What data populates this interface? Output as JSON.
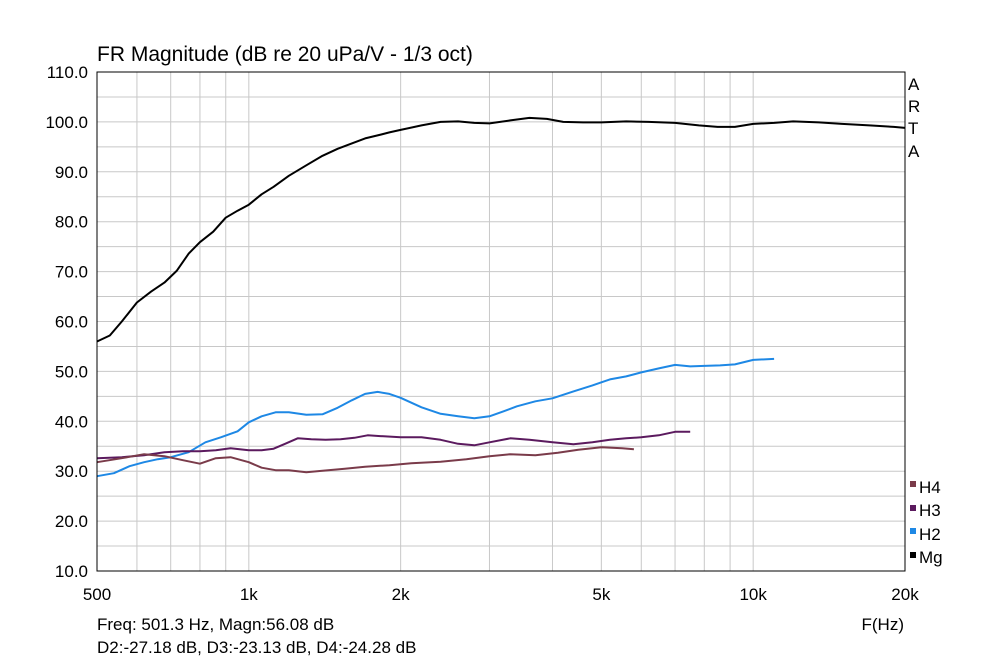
{
  "chart_data": {
    "type": "line",
    "title": "FR Magnitude (dB re 20 uPa/V - 1/3 oct)",
    "xlabel": "F(Hz)",
    "ylabel": "",
    "x_scale": "log",
    "xlim": [
      500,
      20000
    ],
    "ylim": [
      10,
      110
    ],
    "grid": true,
    "y_ticks": [
      "10.0",
      "20.0",
      "30.0",
      "40.0",
      "50.0",
      "60.0",
      "70.0",
      "80.0",
      "90.0",
      "100.0",
      "110.0"
    ],
    "y_tick_values": [
      10,
      20,
      30,
      40,
      50,
      60,
      70,
      80,
      90,
      100,
      110
    ],
    "x_ticks": [
      "500",
      "1k",
      "2k",
      "5k",
      "10k",
      "20k"
    ],
    "x_tick_values": [
      500,
      1000,
      2000,
      5000,
      10000,
      20000
    ],
    "brand": [
      "A",
      "R",
      "T",
      "A"
    ],
    "legend_position": "bottom-right",
    "series": [
      {
        "name": "Mg",
        "color": "#000000",
        "points": [
          [
            500,
            56.0
          ],
          [
            530,
            57.2
          ],
          [
            560,
            60.0
          ],
          [
            600,
            63.8
          ],
          [
            640,
            66.0
          ],
          [
            680,
            67.8
          ],
          [
            720,
            70.2
          ],
          [
            760,
            73.6
          ],
          [
            800,
            75.9
          ],
          [
            850,
            78.0
          ],
          [
            900,
            80.8
          ],
          [
            950,
            82.2
          ],
          [
            1000,
            83.4
          ],
          [
            1060,
            85.5
          ],
          [
            1120,
            87.0
          ],
          [
            1200,
            89.2
          ],
          [
            1300,
            91.3
          ],
          [
            1400,
            93.2
          ],
          [
            1500,
            94.6
          ],
          [
            1600,
            95.7
          ],
          [
            1700,
            96.7
          ],
          [
            1800,
            97.3
          ],
          [
            1900,
            97.9
          ],
          [
            2000,
            98.4
          ],
          [
            2200,
            99.3
          ],
          [
            2400,
            100.0
          ],
          [
            2600,
            100.1
          ],
          [
            2800,
            99.8
          ],
          [
            3000,
            99.7
          ],
          [
            3300,
            100.3
          ],
          [
            3600,
            100.8
          ],
          [
            3900,
            100.6
          ],
          [
            4200,
            100.0
          ],
          [
            4600,
            99.9
          ],
          [
            5000,
            99.9
          ],
          [
            5600,
            100.1
          ],
          [
            6200,
            100.0
          ],
          [
            7000,
            99.8
          ],
          [
            7800,
            99.3
          ],
          [
            8500,
            99.0
          ],
          [
            9200,
            99.0
          ],
          [
            10000,
            99.6
          ],
          [
            11000,
            99.8
          ],
          [
            12000,
            100.1
          ],
          [
            13500,
            99.9
          ],
          [
            15000,
            99.6
          ],
          [
            17000,
            99.3
          ],
          [
            19000,
            99.0
          ],
          [
            20000,
            98.8
          ]
        ]
      },
      {
        "name": "H2",
        "color": "#1e88e5",
        "points": [
          [
            500,
            29.0
          ],
          [
            540,
            29.6
          ],
          [
            580,
            31.0
          ],
          [
            620,
            31.8
          ],
          [
            660,
            32.4
          ],
          [
            700,
            32.8
          ],
          [
            760,
            33.8
          ],
          [
            820,
            35.8
          ],
          [
            880,
            36.8
          ],
          [
            950,
            38.0
          ],
          [
            1000,
            39.8
          ],
          [
            1060,
            41.0
          ],
          [
            1130,
            41.8
          ],
          [
            1200,
            41.8
          ],
          [
            1300,
            41.3
          ],
          [
            1400,
            41.4
          ],
          [
            1500,
            42.7
          ],
          [
            1600,
            44.2
          ],
          [
            1700,
            45.5
          ],
          [
            1800,
            45.9
          ],
          [
            1900,
            45.5
          ],
          [
            2000,
            44.7
          ],
          [
            2200,
            42.8
          ],
          [
            2400,
            41.5
          ],
          [
            2600,
            41.0
          ],
          [
            2800,
            40.6
          ],
          [
            3000,
            41.0
          ],
          [
            3200,
            42.0
          ],
          [
            3400,
            43.0
          ],
          [
            3700,
            44.0
          ],
          [
            4000,
            44.6
          ],
          [
            4400,
            46.0
          ],
          [
            4800,
            47.2
          ],
          [
            5200,
            48.4
          ],
          [
            5600,
            49.0
          ],
          [
            6000,
            49.8
          ],
          [
            6500,
            50.6
          ],
          [
            7000,
            51.3
          ],
          [
            7500,
            51.0
          ],
          [
            8000,
            51.1
          ],
          [
            8600,
            51.2
          ],
          [
            9200,
            51.4
          ],
          [
            10000,
            52.3
          ],
          [
            11000,
            52.5
          ]
        ]
      },
      {
        "name": "H3",
        "color": "#5b1a5e",
        "points": [
          [
            500,
            32.6
          ],
          [
            560,
            32.8
          ],
          [
            620,
            33.2
          ],
          [
            680,
            33.8
          ],
          [
            740,
            34.0
          ],
          [
            800,
            34.0
          ],
          [
            860,
            34.2
          ],
          [
            920,
            34.6
          ],
          [
            1000,
            34.2
          ],
          [
            1060,
            34.2
          ],
          [
            1120,
            34.5
          ],
          [
            1180,
            35.5
          ],
          [
            1250,
            36.6
          ],
          [
            1330,
            36.4
          ],
          [
            1420,
            36.3
          ],
          [
            1520,
            36.4
          ],
          [
            1620,
            36.7
          ],
          [
            1720,
            37.2
          ],
          [
            1850,
            37.0
          ],
          [
            2000,
            36.8
          ],
          [
            2200,
            36.8
          ],
          [
            2400,
            36.3
          ],
          [
            2600,
            35.5
          ],
          [
            2800,
            35.2
          ],
          [
            3000,
            35.8
          ],
          [
            3300,
            36.6
          ],
          [
            3600,
            36.3
          ],
          [
            4000,
            35.8
          ],
          [
            4400,
            35.4
          ],
          [
            4800,
            35.8
          ],
          [
            5200,
            36.3
          ],
          [
            5600,
            36.6
          ],
          [
            6000,
            36.8
          ],
          [
            6500,
            37.2
          ],
          [
            7000,
            37.9
          ],
          [
            7500,
            37.9
          ]
        ]
      },
      {
        "name": "H4",
        "color": "#7a3b4a",
        "points": [
          [
            500,
            31.8
          ],
          [
            560,
            32.6
          ],
          [
            620,
            33.4
          ],
          [
            680,
            33.0
          ],
          [
            740,
            32.2
          ],
          [
            800,
            31.5
          ],
          [
            860,
            32.6
          ],
          [
            920,
            32.8
          ],
          [
            1000,
            31.8
          ],
          [
            1060,
            30.7
          ],
          [
            1130,
            30.2
          ],
          [
            1200,
            30.2
          ],
          [
            1300,
            29.8
          ],
          [
            1400,
            30.1
          ],
          [
            1550,
            30.5
          ],
          [
            1700,
            30.9
          ],
          [
            1900,
            31.2
          ],
          [
            2100,
            31.6
          ],
          [
            2400,
            31.9
          ],
          [
            2700,
            32.4
          ],
          [
            3000,
            33.0
          ],
          [
            3300,
            33.4
          ],
          [
            3700,
            33.2
          ],
          [
            4100,
            33.7
          ],
          [
            4500,
            34.3
          ],
          [
            5000,
            34.8
          ],
          [
            5500,
            34.6
          ],
          [
            5800,
            34.4
          ]
        ]
      }
    ]
  },
  "legend": [
    {
      "label": "H4",
      "color": "#7a3b4a"
    },
    {
      "label": "H3",
      "color": "#5b1a5e"
    },
    {
      "label": "H2",
      "color": "#1e88e5"
    },
    {
      "label": "Mg",
      "color": "#000000"
    }
  ],
  "status": {
    "line1": "Freq: 501.3 Hz, Magn:56.08 dB",
    "line2": "D2:-27.18 dB, D3:-23.13 dB, D4:-24.28 dB"
  }
}
